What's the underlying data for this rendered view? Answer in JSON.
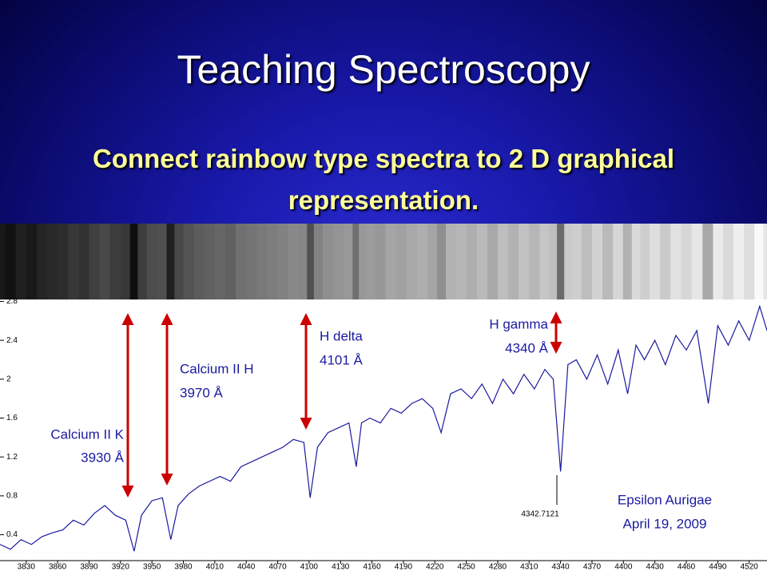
{
  "slide": {
    "title": "Teaching Spectroscopy",
    "subtitle_lines": [
      "Connect rainbow type spectra to 2 D graphical",
      "representation."
    ]
  },
  "chart_data": {
    "type": "line",
    "color": "#1a1aa0",
    "x": [
      3805,
      3815,
      3825,
      3835,
      3845,
      3855,
      3865,
      3875,
      3885,
      3895,
      3905,
      3915,
      3925,
      3933,
      3940,
      3950,
      3960,
      3968,
      3975,
      3985,
      3995,
      4005,
      4015,
      4025,
      4035,
      4045,
      4055,
      4065,
      4075,
      4085,
      4095,
      4101,
      4108,
      4118,
      4128,
      4138,
      4145,
      4150,
      4158,
      4168,
      4178,
      4188,
      4198,
      4208,
      4218,
      4226,
      4235,
      4245,
      4255,
      4265,
      4275,
      4285,
      4295,
      4305,
      4315,
      4325,
      4333,
      4340,
      4347,
      4355,
      4365,
      4375,
      4385,
      4395,
      4404,
      4412,
      4420,
      4430,
      4440,
      4450,
      4460,
      4470,
      4481,
      4490,
      4500,
      4510,
      4520,
      4530,
      4537
    ],
    "values": [
      0.3,
      0.25,
      0.35,
      0.3,
      0.38,
      0.42,
      0.45,
      0.55,
      0.5,
      0.62,
      0.7,
      0.6,
      0.55,
      0.23,
      0.6,
      0.75,
      0.78,
      0.35,
      0.7,
      0.82,
      0.9,
      0.95,
      1.0,
      0.95,
      1.1,
      1.15,
      1.2,
      1.25,
      1.3,
      1.38,
      1.35,
      0.78,
      1.3,
      1.45,
      1.5,
      1.55,
      1.1,
      1.55,
      1.6,
      1.55,
      1.7,
      1.65,
      1.75,
      1.8,
      1.7,
      1.45,
      1.85,
      1.9,
      1.8,
      1.95,
      1.75,
      2.0,
      1.85,
      2.05,
      1.9,
      2.1,
      2.0,
      1.05,
      2.15,
      2.2,
      2.0,
      2.25,
      1.95,
      2.3,
      1.85,
      2.35,
      2.2,
      2.4,
      2.15,
      2.45,
      2.3,
      2.5,
      1.75,
      2.55,
      2.35,
      2.6,
      2.4,
      2.75,
      2.5
    ],
    "xlim": [
      3805,
      4537
    ],
    "ylim": [
      0.15,
      2.82
    ],
    "xticks": [
      3830,
      3860,
      3890,
      3920,
      3950,
      3980,
      4010,
      4040,
      4070,
      4100,
      4130,
      4160,
      4190,
      4220,
      4250,
      4280,
      4310,
      4340,
      4370,
      4400,
      4430,
      4460,
      4490,
      4520
    ],
    "yticks": [
      0.4,
      0.8,
      1.2,
      1.6,
      2,
      2.4,
      2.8
    ],
    "annotations": [
      {
        "lines": [
          "Calcium II K",
          "3930 Å"
        ]
      },
      {
        "lines": [
          "Calcium II H",
          "3970 Å"
        ]
      },
      {
        "lines": [
          "H delta",
          "4101 Å"
        ]
      },
      {
        "lines": [
          "H gamma",
          "4340 Å"
        ]
      },
      {
        "lines": [
          "4342.7121"
        ]
      },
      {
        "lines": [
          "Epsilon Aurigae",
          "April 19, 2009"
        ]
      }
    ]
  }
}
